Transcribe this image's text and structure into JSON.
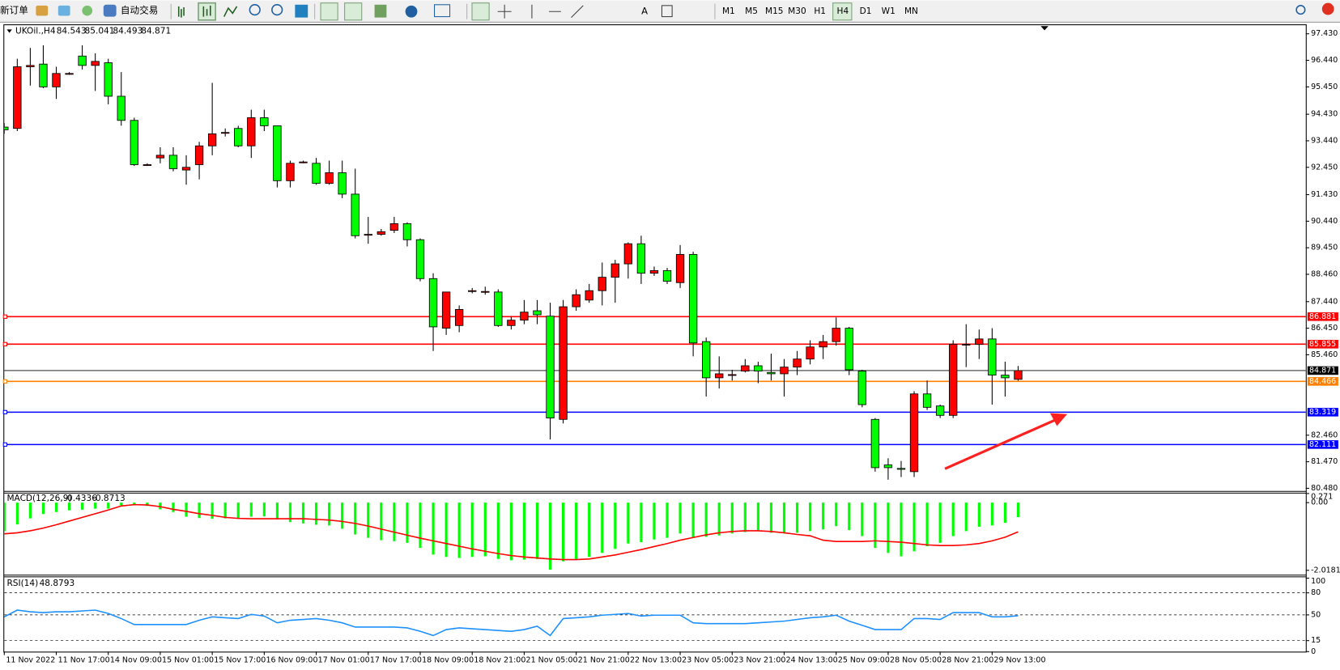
{
  "toolbar": {
    "new_order": "新订单",
    "auto_trading": "自动交易",
    "timeframes": [
      "M1",
      "M5",
      "M15",
      "M30",
      "H1",
      "H4",
      "D1",
      "W1",
      "MN"
    ]
  },
  "chart_data": [
    {
      "type": "candlestick",
      "title": "UKOil.,H4",
      "categories": [
        "11 Nov 2022",
        null,
        null,
        null,
        "11 Nov 17:00",
        null,
        null,
        null,
        "14 Nov 09:00",
        null,
        null,
        null,
        "15 Nov 01:00",
        null,
        null,
        null,
        "15 Nov 17:00",
        null,
        null,
        null,
        "16 Nov 09:00",
        null,
        null,
        null,
        "17 Nov 01:00",
        null,
        null,
        null,
        "17 Nov 17:00",
        null,
        null,
        null,
        "18 Nov 09:00",
        null,
        null,
        null,
        "18 Nov 21:00",
        null,
        null,
        null,
        "21 Nov 05:00",
        null,
        null,
        null,
        "21 Nov 21:00",
        null,
        null,
        null,
        "22 Nov 13:00",
        null,
        null,
        null,
        "23 Nov 05:00",
        null,
        null,
        null,
        "23 Nov 21:00",
        null,
        null,
        null,
        "24 Nov 13:00",
        null,
        null,
        null,
        "25 Nov 09:00",
        null,
        null,
        null,
        "28 Nov 05:00",
        null,
        null,
        null,
        "28 Nov 21:00",
        null,
        null,
        null,
        "29 Nov 13:00",
        null,
        null
      ],
      "open": [
        93.95,
        93.9,
        96.2,
        96.3,
        95.45,
        95.95,
        96.6,
        96.25,
        96.35,
        95.1,
        94.2,
        92.55,
        92.8,
        92.9,
        92.35,
        92.55,
        93.25,
        93.75,
        93.9,
        93.25,
        94.3,
        94.0,
        91.95,
        92.65,
        92.6,
        91.85,
        92.25,
        91.45,
        89.95,
        89.95,
        90.1,
        90.35,
        89.75,
        88.3,
        86.45,
        86.55,
        87.85,
        87.82,
        87.8,
        86.55,
        86.75,
        87.1,
        86.9,
        83.05,
        87.25,
        87.5,
        87.85,
        88.35,
        88.85,
        89.6,
        88.5,
        88.6,
        88.15,
        89.2,
        85.95,
        84.6,
        84.72,
        84.85,
        85.05,
        84.8,
        84.75,
        85.0,
        85.3,
        85.75,
        85.95,
        86.45,
        84.85,
        83.05,
        81.35,
        81.22,
        81.1,
        84.0,
        83.55,
        83.2,
        85.85,
        85.85,
        86.05,
        84.7,
        84.543
      ],
      "high": [
        94.1,
        96.5,
        96.9,
        97.0,
        96.2,
        96.0,
        97.0,
        96.7,
        96.5,
        96.0,
        94.3,
        92.6,
        93.2,
        93.2,
        92.9,
        93.4,
        95.6,
        93.9,
        94.0,
        94.6,
        94.6,
        94.0,
        92.7,
        92.7,
        92.8,
        92.7,
        92.7,
        92.4,
        90.6,
        90.15,
        90.6,
        90.4,
        89.8,
        88.5,
        87.8,
        87.3,
        87.95,
        88.0,
        87.9,
        86.9,
        87.5,
        87.5,
        87.4,
        87.5,
        87.9,
        88.1,
        88.9,
        89.0,
        89.65,
        89.9,
        88.75,
        88.7,
        89.55,
        89.3,
        86.1,
        85.4,
        84.9,
        85.3,
        85.2,
        85.5,
        85.3,
        85.6,
        86.0,
        86.2,
        86.85,
        86.5,
        84.9,
        83.1,
        81.6,
        81.5,
        84.1,
        84.5,
        83.6,
        86.0,
        86.6,
        86.4,
        86.45,
        85.2,
        85.041
      ],
      "low": [
        93.7,
        93.8,
        95.5,
        95.4,
        95.0,
        95.9,
        96.1,
        95.3,
        94.8,
        94.0,
        92.5,
        92.5,
        92.6,
        92.3,
        91.8,
        92.0,
        92.9,
        93.6,
        93.2,
        92.8,
        93.8,
        91.7,
        91.7,
        92.6,
        91.8,
        91.8,
        91.3,
        89.8,
        89.6,
        89.9,
        90.0,
        89.5,
        88.2,
        85.6,
        86.2,
        86.3,
        87.75,
        87.7,
        86.5,
        86.4,
        86.6,
        86.6,
        82.3,
        82.9,
        87.1,
        87.4,
        87.3,
        87.4,
        88.3,
        88.1,
        88.4,
        88.1,
        87.95,
        85.4,
        83.9,
        84.2,
        84.5,
        84.8,
        84.4,
        84.5,
        83.9,
        84.7,
        85.1,
        85.3,
        85.8,
        84.7,
        83.5,
        81.1,
        80.8,
        80.9,
        80.9,
        83.4,
        83.1,
        83.1,
        85.0,
        85.3,
        83.6,
        83.9,
        84.493
      ],
      "close": [
        93.85,
        96.2,
        96.25,
        95.45,
        95.95,
        95.95,
        96.25,
        96.4,
        95.1,
        94.2,
        92.55,
        92.55,
        92.9,
        92.4,
        92.45,
        93.25,
        93.7,
        93.75,
        93.25,
        94.3,
        94.0,
        91.95,
        92.6,
        92.65,
        91.85,
        92.25,
        91.45,
        89.9,
        89.95,
        90.05,
        90.35,
        89.75,
        88.3,
        86.5,
        87.8,
        87.15,
        87.85,
        87.82,
        86.55,
        86.75,
        87.05,
        86.95,
        83.1,
        87.25,
        87.7,
        87.85,
        88.35,
        88.85,
        89.6,
        88.5,
        88.6,
        88.2,
        89.2,
        85.9,
        84.6,
        84.75,
        84.72,
        85.05,
        84.85,
        84.75,
        85.0,
        85.3,
        85.75,
        85.95,
        86.45,
        84.9,
        83.6,
        81.25,
        81.25,
        81.2,
        84.0,
        83.5,
        83.2,
        85.85,
        85.85,
        86.05,
        84.7,
        84.6,
        84.871
      ],
      "up_color": "#ff0000",
      "down_color": "#00ff00",
      "bid_color": "#000000",
      "ylim": [
        80.38,
        97.75
      ],
      "yticks": [
        {
          "value": 97.43,
          "label": "97.430"
        },
        {
          "value": 96.44,
          "label": "96.440"
        },
        {
          "value": 95.45,
          "label": "95.450"
        },
        {
          "value": 94.43,
          "label": "94.430"
        },
        {
          "value": 93.44,
          "label": "93.440"
        },
        {
          "value": 92.45,
          "label": "92.450"
        },
        {
          "value": 91.43,
          "label": "91.430"
        },
        {
          "value": 90.44,
          "label": "90.440"
        },
        {
          "value": 89.45,
          "label": "89.450"
        },
        {
          "value": 88.46,
          "label": "88.460"
        },
        {
          "value": 87.44,
          "label": "87.440"
        },
        {
          "value": 86.45,
          "label": "86.450"
        },
        {
          "value": 85.46,
          "label": "85.460"
        },
        {
          "value": 82.46,
          "label": "82.460"
        },
        {
          "value": 81.47,
          "label": "81.470"
        },
        {
          "value": 80.48,
          "label": "80.480"
        }
      ],
      "hlines": [
        {
          "value": 86.881,
          "color": "#ff0000"
        },
        {
          "value": 85.855,
          "color": "#ff0000"
        },
        {
          "value": 84.466,
          "color": "#ff8000"
        },
        {
          "value": 83.319,
          "color": "#0000ff"
        },
        {
          "value": 82.111,
          "color": "#0000ff"
        }
      ]
    },
    {
      "type": "macd",
      "title": "MACD(12,26,9)",
      "series": [
        {
          "color": "#00ff00",
          "values": [
            -0.85,
            -0.65,
            -0.47,
            -0.34,
            -0.28,
            -0.23,
            -0.21,
            -0.18,
            -0.18,
            -0.08,
            -0.05,
            -0.1,
            -0.2,
            -0.28,
            -0.42,
            -0.46,
            -0.48,
            -0.47,
            -0.47,
            -0.42,
            -0.41,
            -0.5,
            -0.58,
            -0.62,
            -0.66,
            -0.68,
            -0.78,
            -0.95,
            -1.05,
            -1.12,
            -1.15,
            -1.2,
            -1.35,
            -1.55,
            -1.62,
            -1.65,
            -1.62,
            -1.6,
            -1.68,
            -1.72,
            -1.7,
            -1.68,
            -2.0,
            -1.75,
            -1.7,
            -1.62,
            -1.5,
            -1.38,
            -1.22,
            -1.18,
            -1.1,
            -1.05,
            -0.92,
            -1.05,
            -1.02,
            -0.98,
            -0.92,
            -0.88,
            -0.85,
            -0.9,
            -0.92,
            -0.9,
            -0.85,
            -0.8,
            -0.7,
            -0.82,
            -1.0,
            -1.35,
            -1.5,
            -1.6,
            -1.45,
            -1.3,
            -1.2,
            -1.0,
            -0.85,
            -0.72,
            -0.68,
            -0.6,
            -0.4336
          ]
        },
        {
          "color": "#ff0000",
          "values": [
            -0.93,
            -0.9,
            -0.84,
            -0.76,
            -0.66,
            -0.55,
            -0.44,
            -0.33,
            -0.22,
            -0.1,
            -0.06,
            -0.07,
            -0.12,
            -0.2,
            -0.26,
            -0.33,
            -0.38,
            -0.44,
            -0.47,
            -0.48,
            -0.48,
            -0.48,
            -0.48,
            -0.48,
            -0.5,
            -0.52,
            -0.56,
            -0.62,
            -0.7,
            -0.79,
            -0.88,
            -0.97,
            -1.06,
            -1.14,
            -1.22,
            -1.3,
            -1.38,
            -1.45,
            -1.52,
            -1.58,
            -1.62,
            -1.65,
            -1.68,
            -1.7,
            -1.7,
            -1.68,
            -1.62,
            -1.56,
            -1.48,
            -1.4,
            -1.31,
            -1.22,
            -1.12,
            -1.04,
            -0.96,
            -0.9,
            -0.86,
            -0.84,
            -0.84,
            -0.86,
            -0.9,
            -0.95,
            -0.99,
            -1.12,
            -1.16,
            -1.16,
            -1.16,
            -1.14,
            -1.16,
            -1.18,
            -1.22,
            -1.26,
            -1.28,
            -1.28,
            -1.26,
            -1.22,
            -1.14,
            -1.03,
            -0.8713
          ]
        }
      ],
      "ylim": [
        -2.15,
        0.271
      ],
      "yticks": [
        0.271,
        {
          "value": 0,
          "label": "0.00"
        },
        -2.0181
      ]
    },
    {
      "type": "line",
      "title": "RSI(14)",
      "series": [
        {
          "color": "#1e90ff",
          "values": [
            47.3,
            56.5,
            54.2,
            53.1,
            54.2,
            54.2,
            55.4,
            56.5,
            51.9,
            45.0,
            36.9,
            36.9,
            36.9,
            36.9,
            36.9,
            42.7,
            47.3,
            46.1,
            45.0,
            50.7,
            48.4,
            39.2,
            42.7,
            43.8,
            45.0,
            42.7,
            39.2,
            33.4,
            33.4,
            33.4,
            33.4,
            32.3,
            27.7,
            21.9,
            30.0,
            32.3,
            31.1,
            30.0,
            28.8,
            27.7,
            30.0,
            34.6,
            21.9,
            45.0,
            46.1,
            47.3,
            49.6,
            50.7,
            51.9,
            48.4,
            49.6,
            49.6,
            49.6,
            39.2,
            38.1,
            38.1,
            38.1,
            38.1,
            39.2,
            40.4,
            41.5,
            43.8,
            46.1,
            47.3,
            49.6,
            41.5,
            35.8,
            30.0,
            30.0,
            30.0,
            45.0,
            45.0,
            43.8,
            53.1,
            53.1,
            53.1,
            47.3,
            47.3,
            48.8793
          ]
        }
      ],
      "ylim": [
        0,
        100
      ],
      "yticks": [
        100,
        80,
        50,
        15,
        0
      ],
      "levels": [
        80,
        50,
        15
      ]
    }
  ]
}
